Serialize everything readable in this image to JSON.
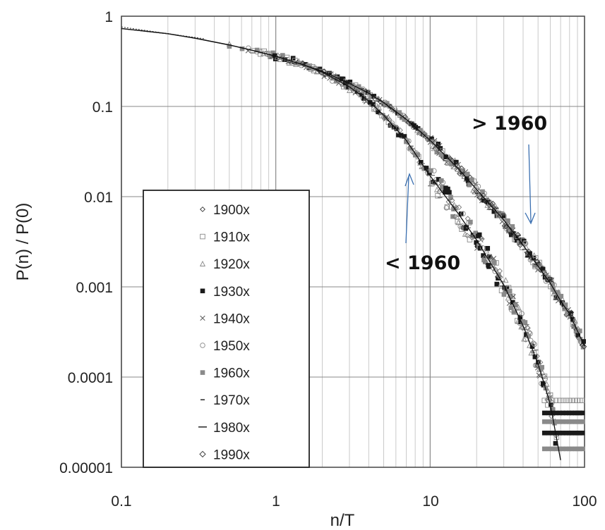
{
  "chart_data": {
    "type": "scatter",
    "x_scale": "log",
    "y_scale": "log",
    "xlim": [
      0.1,
      100
    ],
    "ylim": [
      1e-05,
      1
    ],
    "grid": true,
    "xlabel": "n/T",
    "ylabel": "P(n) / P(0)",
    "x_ticks": [
      "0.1",
      "1",
      "10",
      "100"
    ],
    "y_ticks": [
      "1",
      "0.1",
      "0.01",
      "0.001",
      "0.0001",
      "0.00001"
    ],
    "legend_position": "lower-left",
    "legend": [
      {
        "name": "1900x",
        "marker": "diamond-open"
      },
      {
        "name": "1910x",
        "marker": "square-open"
      },
      {
        "name": "1920x",
        "marker": "triangle-open"
      },
      {
        "name": "1930x",
        "marker": "square-filled"
      },
      {
        "name": "1940x",
        "marker": "x"
      },
      {
        "name": "1950x",
        "marker": "circle-open"
      },
      {
        "name": "1960x",
        "marker": "square-filled-gray"
      },
      {
        "name": "1970x",
        "marker": "dash-short"
      },
      {
        "name": "1980x",
        "marker": "dash"
      },
      {
        "name": "1990x",
        "marker": "diamond-small"
      }
    ],
    "annotations": [
      {
        "text": "> 1960",
        "points_to": {
          "x": 45,
          "y": 0.005
        }
      },
      {
        "text": "< 1960",
        "points_to": {
          "x": 8,
          "y": 0.025
        }
      }
    ],
    "series": [
      {
        "group": "< 1960",
        "x": [
          0.1,
          0.2,
          0.3,
          0.5,
          0.7,
          1,
          1.5,
          2,
          3,
          4,
          5,
          7,
          10,
          15,
          20,
          30,
          40,
          50,
          60,
          70
        ],
        "y": [
          0.73,
          0.64,
          0.57,
          0.48,
          0.42,
          0.36,
          0.29,
          0.24,
          0.165,
          0.115,
          0.08,
          0.042,
          0.017,
          0.0067,
          0.0033,
          0.00105,
          0.00037,
          0.00014,
          5e-05,
          1.2e-05
        ]
      },
      {
        "group": "> 1960",
        "x": [
          0.1,
          0.2,
          0.3,
          0.5,
          0.7,
          1,
          1.5,
          2,
          3,
          4,
          5,
          7,
          10,
          15,
          20,
          30,
          40,
          50,
          60,
          70,
          80,
          100
        ],
        "y": [
          0.73,
          0.64,
          0.57,
          0.48,
          0.42,
          0.36,
          0.29,
          0.245,
          0.18,
          0.14,
          0.11,
          0.072,
          0.042,
          0.021,
          0.012,
          0.0055,
          0.0029,
          0.0017,
          0.0011,
          0.0007,
          0.0005,
          0.00022
        ]
      }
    ]
  }
}
